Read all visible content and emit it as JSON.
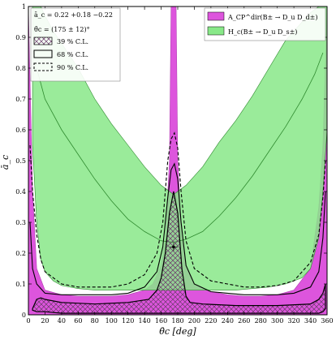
{
  "chart_data": {
    "type": "contour",
    "xlabel": "θ̄c [deg]",
    "ylabel": "ā_c",
    "xlim": [
      0,
      360
    ],
    "ylim": [
      0,
      1
    ],
    "x_ticks": [
      0,
      20,
      40,
      60,
      80,
      100,
      120,
      140,
      160,
      180,
      200,
      220,
      240,
      260,
      280,
      300,
      320,
      340,
      360
    ],
    "y_ticks": [
      0,
      0.1,
      0.2,
      0.3,
      0.4,
      0.5,
      0.6,
      0.7,
      0.8,
      0.9,
      1
    ],
    "result_lines": [
      "ā_c = 0.22 +0.18 −0.22",
      "θ̄c = (175 ± 12)°"
    ],
    "best_fit": {
      "x": 175,
      "y": 0.22
    },
    "legend_left": [
      {
        "label": "39 % C.L.",
        "style": "hatched"
      },
      {
        "label": "68 % C.L.",
        "style": "solid"
      },
      {
        "label": "90 % C.L.",
        "style": "dashed"
      }
    ],
    "legend_right": [
      {
        "label": "A_CP^dir(B± → D_u D_d±)",
        "color": "#dd55dd"
      },
      {
        "label": "H_c(B± → D_u D_s±)",
        "color": "#88e888"
      }
    ],
    "magenta_band": {
      "x": [
        0,
        5,
        10,
        20,
        40,
        60,
        80,
        100,
        120,
        140,
        150,
        160,
        165,
        170,
        172,
        174,
        176,
        178,
        180,
        185,
        190,
        200,
        220,
        240,
        260,
        280,
        300,
        320,
        340,
        350,
        355,
        360
      ],
      "lower": [
        0,
        0,
        0,
        0,
        0,
        0,
        0,
        0,
        0,
        0,
        0,
        0,
        0,
        0,
        0,
        0,
        0,
        0,
        0,
        0,
        0,
        0,
        0,
        0,
        0,
        0,
        0,
        0,
        0,
        0,
        0,
        0
      ],
      "upper": [
        1.0,
        0.4,
        0.15,
        0.08,
        0.065,
        0.06,
        0.06,
        0.06,
        0.065,
        0.08,
        0.1,
        0.16,
        0.25,
        0.5,
        1.0,
        1.0,
        1.0,
        1.0,
        0.5,
        0.25,
        0.16,
        0.1,
        0.075,
        0.065,
        0.06,
        0.06,
        0.065,
        0.08,
        0.15,
        0.35,
        0.55,
        1.0
      ]
    },
    "green_band": {
      "x": [
        5,
        10,
        15,
        20,
        30,
        40,
        60,
        80,
        100,
        120,
        140,
        160,
        175,
        190,
        210,
        230,
        250,
        270,
        290,
        310,
        330,
        340,
        350,
        355,
        360
      ],
      "lower": [
        0.55,
        0.3,
        0.18,
        0.14,
        0.11,
        0.095,
        0.085,
        0.08,
        0.08,
        0.08,
        0.08,
        0.08,
        0.08,
        0.08,
        0.08,
        0.08,
        0.08,
        0.085,
        0.09,
        0.1,
        0.12,
        0.15,
        0.25,
        0.4,
        0.6
      ],
      "upper": [
        1.0,
        1.0,
        1.0,
        0.97,
        0.92,
        0.88,
        0.8,
        0.7,
        0.62,
        0.55,
        0.48,
        0.42,
        0.39,
        0.42,
        0.48,
        0.56,
        0.63,
        0.71,
        0.8,
        0.89,
        0.95,
        0.98,
        1.0,
        1.0,
        1.0
      ]
    },
    "green_central": {
      "x": [
        10,
        20,
        40,
        60,
        80,
        100,
        120,
        140,
        160,
        175,
        190,
        210,
        230,
        250,
        270,
        290,
        310,
        330,
        345,
        355
      ],
      "y": [
        0.8,
        0.7,
        0.6,
        0.52,
        0.44,
        0.37,
        0.31,
        0.27,
        0.24,
        0.235,
        0.245,
        0.27,
        0.32,
        0.38,
        0.45,
        0.53,
        0.61,
        0.7,
        0.78,
        0.85
      ]
    },
    "contour_39": {
      "x": [
        5,
        10,
        15,
        20,
        40,
        80,
        120,
        145,
        155,
        160,
        165,
        170,
        175,
        180,
        185,
        190,
        195,
        210,
        250,
        300,
        340,
        350,
        355,
        358
      ],
      "upper": [
        0.02,
        0.05,
        0.055,
        0.05,
        0.04,
        0.035,
        0.04,
        0.05,
        0.08,
        0.12,
        0.2,
        0.33,
        0.4,
        0.33,
        0.15,
        0.06,
        0.04,
        0.035,
        0.03,
        0.03,
        0.035,
        0.05,
        0.07,
        0.1
      ],
      "lower": [
        0.015,
        0.01,
        0.01,
        0.01,
        0.005,
        0.005,
        0.005,
        0.005,
        0.005,
        0.005,
        0.005,
        0.005,
        0.005,
        0.005,
        0.005,
        0.005,
        0.005,
        0.005,
        0.005,
        0.005,
        0.005,
        0.005,
        0.01,
        0.02
      ]
    },
    "contour_68": {
      "x": [
        2,
        5,
        10,
        20,
        40,
        60,
        80,
        100,
        120,
        140,
        155,
        162,
        168,
        172,
        176,
        180,
        184,
        190,
        200,
        220,
        240,
        260,
        280,
        300,
        320,
        340,
        350,
        355,
        358
      ],
      "y": [
        0.3,
        0.15,
        0.1,
        0.07,
        0.065,
        0.065,
        0.065,
        0.065,
        0.07,
        0.09,
        0.14,
        0.22,
        0.38,
        0.47,
        0.49,
        0.44,
        0.3,
        0.16,
        0.1,
        0.075,
        0.07,
        0.065,
        0.065,
        0.065,
        0.07,
        0.09,
        0.14,
        0.25,
        0.4
      ]
    },
    "contour_90": {
      "x": [
        2,
        5,
        10,
        15,
        20,
        40,
        60,
        80,
        100,
        120,
        140,
        155,
        162,
        168,
        172,
        176,
        180,
        184,
        190,
        200,
        220,
        240,
        260,
        280,
        300,
        320,
        340,
        350,
        355,
        358
      ],
      "y": [
        0.55,
        0.4,
        0.26,
        0.18,
        0.14,
        0.1,
        0.09,
        0.09,
        0.09,
        0.1,
        0.13,
        0.2,
        0.3,
        0.5,
        0.57,
        0.59,
        0.54,
        0.4,
        0.24,
        0.15,
        0.11,
        0.1,
        0.09,
        0.09,
        0.095,
        0.11,
        0.17,
        0.26,
        0.38,
        0.5
      ]
    },
    "colors": {
      "magenta": "#dd55dd",
      "green": "#88e888",
      "green_line": "#2f8a2f",
      "magenta_line": "#b040b0",
      "hatch": "#6a3a6a"
    }
  }
}
